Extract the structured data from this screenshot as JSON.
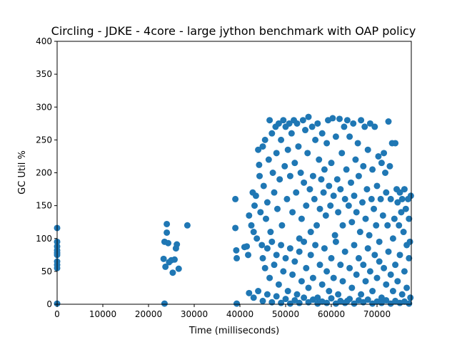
{
  "chart_data": {
    "type": "scatter",
    "title": "Circling - JDKE - 4core -  large jython benchmark with OAP policy",
    "xlabel": "Time (milliseconds)",
    "ylabel": "GC Util %",
    "xlim": [
      0,
      77500
    ],
    "ylim": [
      0,
      400
    ],
    "x_ticks": [
      0,
      10000,
      20000,
      30000,
      40000,
      50000,
      60000,
      70000
    ],
    "y_ticks": [
      0,
      50,
      100,
      150,
      200,
      250,
      300,
      350,
      400
    ],
    "grid": false,
    "legend": "none",
    "marker_color": "#1f77b4",
    "series": [
      {
        "points": [
          [
            0,
            116
          ],
          [
            0,
            95
          ],
          [
            0,
            88
          ],
          [
            0,
            82
          ],
          [
            0,
            78
          ],
          [
            0,
            75
          ],
          [
            0,
            65
          ],
          [
            0,
            60
          ],
          [
            0,
            55
          ],
          [
            0,
            1
          ],
          [
            23300,
            69
          ],
          [
            23500,
            95
          ],
          [
            23700,
            57
          ],
          [
            24000,
            122
          ],
          [
            24000,
            109
          ],
          [
            24300,
            93
          ],
          [
            24500,
            64
          ],
          [
            25000,
            67
          ],
          [
            25300,
            48
          ],
          [
            25700,
            68
          ],
          [
            26000,
            85
          ],
          [
            26200,
            91
          ],
          [
            26600,
            54
          ],
          [
            28500,
            120
          ],
          [
            23500,
            1
          ],
          [
            39000,
            160
          ],
          [
            39000,
            116
          ],
          [
            39200,
            82
          ],
          [
            39300,
            70
          ],
          [
            39300,
            1
          ],
          [
            41000,
            87
          ],
          [
            41500,
            88
          ],
          [
            41800,
            75
          ],
          [
            42000,
            135
          ],
          [
            42500,
            120
          ],
          [
            42800,
            170
          ],
          [
            43000,
            110
          ],
          [
            43200,
            150
          ],
          [
            43500,
            165
          ],
          [
            43700,
            100
          ],
          [
            44000,
            235
          ],
          [
            44200,
            212
          ],
          [
            44300,
            195
          ],
          [
            44500,
            140
          ],
          [
            44800,
            90
          ],
          [
            45000,
            240
          ],
          [
            45200,
            180
          ],
          [
            45500,
            250
          ],
          [
            45700,
            130
          ],
          [
            46000,
            155
          ],
          [
            46300,
            220
          ],
          [
            46500,
            280
          ],
          [
            46700,
            110
          ],
          [
            47000,
            260
          ],
          [
            47200,
            200
          ],
          [
            47500,
            170
          ],
          [
            47800,
            270
          ],
          [
            48000,
            230
          ],
          [
            48200,
            145
          ],
          [
            48500,
            275
          ],
          [
            48700,
            190
          ],
          [
            49000,
            250
          ],
          [
            49200,
            120
          ],
          [
            49500,
            280
          ],
          [
            49800,
            210
          ],
          [
            50000,
            270
          ],
          [
            50300,
            160
          ],
          [
            50500,
            235
          ],
          [
            50800,
            275
          ],
          [
            51000,
            195
          ],
          [
            51300,
            260
          ],
          [
            51500,
            140
          ],
          [
            51800,
            280
          ],
          [
            52000,
            215
          ],
          [
            52300,
            170
          ],
          [
            52500,
            275
          ],
          [
            52800,
            240
          ],
          [
            53000,
            100
          ],
          [
            53300,
            200
          ],
          [
            53500,
            130
          ],
          [
            53800,
            280
          ],
          [
            54000,
            185
          ],
          [
            54300,
            265
          ],
          [
            54500,
            150
          ],
          [
            54800,
            230
          ],
          [
            55000,
            285
          ],
          [
            55300,
            175
          ],
          [
            55500,
            110
          ],
          [
            55800,
            270
          ],
          [
            56000,
            195
          ],
          [
            56300,
            160
          ],
          [
            56500,
            250
          ],
          [
            56800,
            120
          ],
          [
            57000,
            275
          ],
          [
            57300,
            220
          ],
          [
            57500,
            145
          ],
          [
            57800,
            190
          ],
          [
            58000,
            260
          ],
          [
            58300,
            170
          ],
          [
            58500,
            205
          ],
          [
            58800,
            135
          ],
          [
            59000,
            245
          ],
          [
            59300,
            280
          ],
          [
            59500,
            180
          ],
          [
            59800,
            150
          ],
          [
            60000,
            215
          ],
          [
            60300,
            283
          ],
          [
            60500,
            165
          ],
          [
            60800,
            105
          ],
          [
            61000,
            255
          ],
          [
            61300,
            190
          ],
          [
            61500,
            140
          ],
          [
            61800,
            282
          ],
          [
            62000,
            175
          ],
          [
            62300,
            230
          ],
          [
            62500,
            120
          ],
          [
            62800,
            270
          ],
          [
            63000,
            160
          ],
          [
            63300,
            205
          ],
          [
            63500,
            280
          ],
          [
            63800,
            150
          ],
          [
            64000,
            255
          ],
          [
            64300,
            185
          ],
          [
            64500,
            125
          ],
          [
            64800,
            275
          ],
          [
            65000,
            165
          ],
          [
            65300,
            220
          ],
          [
            65500,
            140
          ],
          [
            65800,
            245
          ],
          [
            66000,
            195
          ],
          [
            66300,
            110
          ],
          [
            66500,
            280
          ],
          [
            66800,
            155
          ],
          [
            67000,
            210
          ],
          [
            67300,
            270
          ],
          [
            67500,
            130
          ],
          [
            67800,
            175
          ],
          [
            68000,
            235
          ],
          [
            68300,
            105
          ],
          [
            68500,
            275
          ],
          [
            68800,
            160
          ],
          [
            69000,
            205
          ],
          [
            69300,
            145
          ],
          [
            69500,
            270
          ],
          [
            69800,
            120
          ],
          [
            70000,
            180
          ],
          [
            70300,
            225
          ],
          [
            70500,
            95
          ],
          [
            70800,
            160
          ],
          [
            71000,
            215
          ],
          [
            71300,
            135
          ],
          [
            71500,
            230
          ],
          [
            71800,
            200
          ],
          [
            72000,
            170
          ],
          [
            72300,
            120
          ],
          [
            72500,
            278
          ],
          [
            72800,
            210
          ],
          [
            73000,
            160
          ],
          [
            73300,
            245
          ],
          [
            73500,
            100
          ],
          [
            73800,
            130
          ],
          [
            74000,
            245
          ],
          [
            74300,
            175
          ],
          [
            74500,
            155
          ],
          [
            74800,
            120
          ],
          [
            75000,
            170
          ],
          [
            75300,
            140
          ],
          [
            75500,
            160
          ],
          [
            75800,
            110
          ],
          [
            76000,
            175
          ],
          [
            76300,
            145
          ],
          [
            76500,
            90
          ],
          [
            76800,
            160
          ],
          [
            77000,
            130
          ],
          [
            77200,
            95
          ],
          [
            77400,
            165
          ],
          [
            45000,
            70
          ],
          [
            45500,
            55
          ],
          [
            46000,
            85
          ],
          [
            46500,
            40
          ],
          [
            47000,
            95
          ],
          [
            47500,
            60
          ],
          [
            48000,
            75
          ],
          [
            48500,
            30
          ],
          [
            49000,
            90
          ],
          [
            49500,
            50
          ],
          [
            50000,
            70
          ],
          [
            50500,
            20
          ],
          [
            51000,
            85
          ],
          [
            51500,
            45
          ],
          [
            52000,
            65
          ],
          [
            52500,
            15
          ],
          [
            53000,
            80
          ],
          [
            53500,
            35
          ],
          [
            54000,
            95
          ],
          [
            54500,
            55
          ],
          [
            55000,
            25
          ],
          [
            55500,
            75
          ],
          [
            56000,
            40
          ],
          [
            56500,
            90
          ],
          [
            57000,
            10
          ],
          [
            57500,
            60
          ],
          [
            58000,
            30
          ],
          [
            58500,
            85
          ],
          [
            59000,
            50
          ],
          [
            59500,
            20
          ],
          [
            60000,
            70
          ],
          [
            60500,
            40
          ],
          [
            61000,
            95
          ],
          [
            61500,
            15
          ],
          [
            62000,
            60
          ],
          [
            62500,
            35
          ],
          [
            63000,
            80
          ],
          [
            63500,
            5
          ],
          [
            64000,
            55
          ],
          [
            64500,
            25
          ],
          [
            65000,
            90
          ],
          [
            65500,
            45
          ],
          [
            66000,
            70
          ],
          [
            66500,
            15
          ],
          [
            67000,
            60
          ],
          [
            67500,
            35
          ],
          [
            68000,
            85
          ],
          [
            68500,
            50
          ],
          [
            69000,
            20
          ],
          [
            69500,
            75
          ],
          [
            70000,
            40
          ],
          [
            70500,
            65
          ],
          [
            71000,
            10
          ],
          [
            71500,
            55
          ],
          [
            72000,
            30
          ],
          [
            72500,
            80
          ],
          [
            73000,
            45
          ],
          [
            73500,
            20
          ],
          [
            74000,
            60
          ],
          [
            74500,
            35
          ],
          [
            75000,
            75
          ],
          [
            75500,
            15
          ],
          [
            76000,
            50
          ],
          [
            76500,
            25
          ],
          [
            77000,
            70
          ],
          [
            77300,
            10
          ],
          [
            42000,
            17
          ],
          [
            43000,
            10
          ],
          [
            44000,
            20
          ],
          [
            45000,
            5
          ],
          [
            46000,
            15
          ],
          [
            47000,
            3
          ],
          [
            48000,
            12
          ],
          [
            49000,
            2
          ],
          [
            50000,
            8
          ],
          [
            51000,
            1
          ],
          [
            52000,
            6
          ],
          [
            53000,
            2
          ],
          [
            54000,
            10
          ],
          [
            55000,
            3
          ],
          [
            56000,
            7
          ],
          [
            57000,
            1
          ],
          [
            58000,
            4
          ],
          [
            59000,
            2
          ],
          [
            60000,
            9
          ],
          [
            61000,
            1
          ],
          [
            62000,
            5
          ],
          [
            63000,
            2
          ],
          [
            64000,
            8
          ],
          [
            65000,
            1
          ],
          [
            66000,
            6
          ],
          [
            67000,
            3
          ],
          [
            68000,
            7
          ],
          [
            69000,
            1
          ],
          [
            70000,
            4
          ],
          [
            71000,
            2
          ],
          [
            72000,
            6
          ],
          [
            73000,
            1
          ],
          [
            74000,
            5
          ],
          [
            75000,
            2
          ],
          [
            76000,
            4
          ],
          [
            77000,
            1
          ]
        ]
      }
    ]
  }
}
